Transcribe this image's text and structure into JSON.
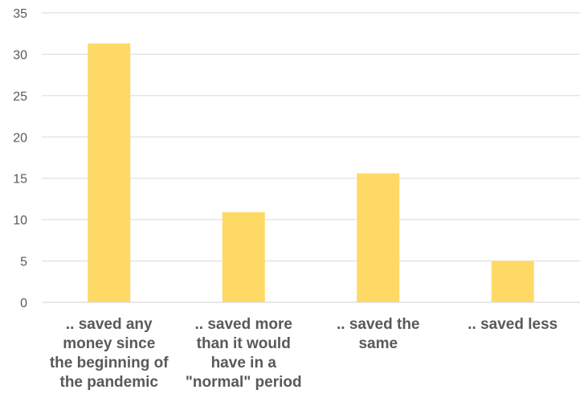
{
  "chart_data": {
    "type": "bar",
    "categories": [
      [
        ".. saved any",
        "money since",
        "the beginning of",
        "the pandemic"
      ],
      [
        ".. saved more",
        "than it would",
        "have in a",
        "\"normal\" period"
      ],
      [
        ".. saved the",
        "same"
      ],
      [
        ".. saved less"
      ]
    ],
    "values": [
      31.3,
      10.9,
      15.6,
      5.0
    ],
    "ylim": [
      0,
      35
    ],
    "yticks": [
      0,
      5,
      10,
      15,
      20,
      25,
      30,
      35
    ],
    "grid": true,
    "bar_color": "#FFD966",
    "title": "",
    "xlabel": "",
    "ylabel": ""
  }
}
